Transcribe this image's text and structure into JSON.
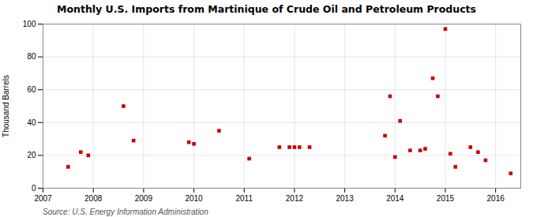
{
  "chart_data": {
    "type": "scatter",
    "title": "Monthly U.S. Imports from Martinique of Crude Oil and Petroleum Products",
    "ylabel": "Thousand Barrels",
    "source": "Source: U.S. Energy Information Administration",
    "x": [
      2007.5,
      2007.75,
      2007.9,
      2008.6,
      2008.8,
      2009.9,
      2010.0,
      2010.5,
      2011.1,
      2011.7,
      2011.9,
      2012.0,
      2012.1,
      2012.3,
      2013.8,
      2013.9,
      2014.0,
      2014.1,
      2014.3,
      2014.5,
      2014.6,
      2014.75,
      2014.85,
      2015.0,
      2015.1,
      2015.2,
      2015.5,
      2015.65,
      2015.8,
      2016.3
    ],
    "values": [
      13,
      22,
      20,
      50,
      29,
      28,
      27,
      35,
      18,
      25,
      25,
      25,
      25,
      25,
      32,
      56,
      19,
      41,
      23,
      23,
      24,
      67,
      56,
      97,
      21,
      13,
      25,
      22,
      17,
      9
    ],
    "color": "#cc0000",
    "marker": "square",
    "xlim": [
      2007.0,
      2016.5
    ],
    "xticks": [
      2007,
      2008,
      2009,
      2010,
      2011,
      2012,
      2013,
      2014,
      2015,
      2016
    ],
    "ylim": [
      0,
      100
    ],
    "yticks": [
      0,
      20,
      40,
      60,
      80,
      100
    ],
    "grid": true
  }
}
